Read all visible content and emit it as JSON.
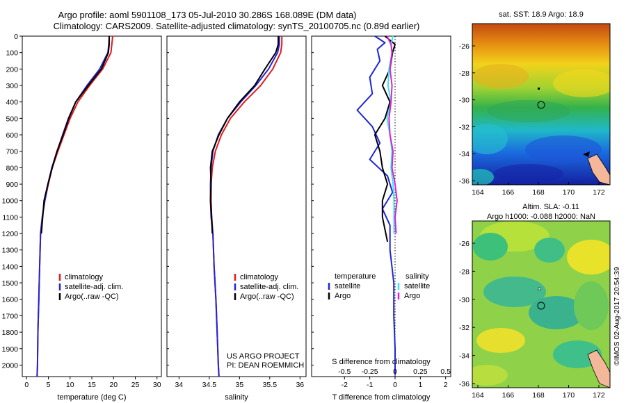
{
  "title_line1": "Argo profile: aoml 5901108_173 05-Jul-2010 30.286S 168.089E (DM data)",
  "title_line2": "Climatology: CARS2009. Satellite-adjusted climatology: synTS_20100705.nc (0.89d earlier)",
  "side_stamp": "©IMOS 02-Aug-2017 20:54:39",
  "colors": {
    "climatology": "#e41a1c",
    "satellite": "#1f24d6",
    "argo": "#000000",
    "sal_satellite": "#33e6f0",
    "sal_argo": "#e020d0"
  },
  "chart_data": [
    {
      "type": "line",
      "panel": "temperature",
      "xlabel": "temperature (deg C)",
      "ylabel": "",
      "xlim": [
        -1,
        31
      ],
      "ylim": [
        2070,
        0
      ],
      "xticks": [
        "0",
        "5",
        "10",
        "15",
        "20",
        "25",
        "30"
      ],
      "yticks": [
        "0",
        "100",
        "200",
        "300",
        "400",
        "500",
        "600",
        "700",
        "800",
        "900",
        "1000",
        "1100",
        "1200",
        "1300",
        "1400",
        "1500",
        "1600",
        "1700",
        "1800",
        "1900",
        "2000"
      ],
      "legend": [
        "climatology",
        "satellite-adj. clim.",
        "Argo(..raw -QC)"
      ],
      "series": [
        {
          "name": "climatology",
          "x": [
            19.8,
            19.6,
            19.4,
            17.5,
            14.5,
            11.8,
            10.0,
            8.6,
            7.2,
            5.9,
            5.0,
            4.2,
            3.6,
            3.2,
            3.0,
            2.8,
            2.6,
            2.5,
            2.4
          ],
          "y": [
            0,
            50,
            100,
            200,
            300,
            400,
            500,
            600,
            700,
            800,
            900,
            1000,
            1100,
            1200,
            1400,
            1600,
            1800,
            2000,
            2070
          ]
        },
        {
          "name": "satellite-adj. clim.",
          "x": [
            19.0,
            18.9,
            18.7,
            16.8,
            13.9,
            11.3,
            9.6,
            8.3,
            7.0,
            5.8,
            4.9,
            4.2,
            3.6,
            3.2,
            3.0,
            2.8,
            2.6,
            2.5,
            2.4
          ],
          "y": [
            0,
            50,
            100,
            200,
            300,
            400,
            500,
            600,
            700,
            800,
            900,
            1000,
            1100,
            1200,
            1400,
            1600,
            1800,
            2000,
            2070
          ]
        },
        {
          "name": "Argo(..raw -QC)",
          "x": [
            19.0,
            19.0,
            18.8,
            17.2,
            14.2,
            11.3,
            9.7,
            8.4,
            7.0,
            5.9,
            4.9,
            4.0,
            3.7,
            3.4
          ],
          "y": [
            0,
            50,
            100,
            200,
            300,
            400,
            500,
            600,
            700,
            800,
            900,
            1000,
            1100,
            1200
          ]
        }
      ],
      "footer": []
    },
    {
      "type": "line",
      "panel": "salinity",
      "xlabel": "salinity",
      "ylabel": "",
      "xlim": [
        33.8,
        36.1
      ],
      "ylim": [
        2070,
        0
      ],
      "xticks": [
        "34",
        "34.5",
        "35",
        "35.5",
        "36"
      ],
      "legend": [
        "climatology",
        "satellite-adj. clim.",
        "Argo(..raw -QC)"
      ],
      "series": [
        {
          "name": "climatology",
          "x": [
            35.7,
            35.7,
            35.68,
            35.55,
            35.35,
            35.08,
            34.85,
            34.7,
            34.6,
            34.55,
            34.53,
            34.53,
            34.54,
            34.56,
            34.58,
            34.61,
            34.63,
            34.65,
            34.66
          ],
          "y": [
            0,
            50,
            100,
            200,
            300,
            400,
            500,
            600,
            700,
            800,
            900,
            1000,
            1100,
            1200,
            1400,
            1600,
            1800,
            2000,
            2070
          ]
        },
        {
          "name": "satellite-adj. clim.",
          "x": [
            35.66,
            35.66,
            35.63,
            35.48,
            35.27,
            35.02,
            34.8,
            34.65,
            34.56,
            34.53,
            34.52,
            34.52,
            34.53,
            34.56,
            34.58,
            34.61,
            34.63,
            34.65,
            34.66
          ],
          "y": [
            0,
            50,
            100,
            200,
            300,
            400,
            500,
            600,
            700,
            800,
            900,
            1000,
            1100,
            1200,
            1400,
            1600,
            1800,
            2000,
            2070
          ]
        },
        {
          "name": "Argo(..raw -QC)",
          "x": [
            35.64,
            35.64,
            35.6,
            35.42,
            35.25,
            35.0,
            34.8,
            34.66,
            34.55,
            34.52,
            34.53,
            34.52,
            34.54,
            34.55
          ],
          "y": [
            0,
            50,
            100,
            200,
            300,
            400,
            500,
            600,
            700,
            800,
            900,
            1000,
            1100,
            1200
          ]
        }
      ],
      "footer": [
        "US ARGO PROJECT",
        "PI: DEAN ROEMMICH"
      ]
    },
    {
      "type": "line",
      "panel": "differences",
      "xlabel": "T difference from climatology",
      "xlabel_top": "S difference from climatology",
      "ylabel": "",
      "xlim": [
        -3.3,
        2.2
      ],
      "ylim": [
        2070,
        0
      ],
      "xticks": [
        "-2",
        "-1",
        "0",
        "1",
        "2"
      ],
      "xticks_top": [
        "-0.5",
        "-0.25",
        "0",
        "0.25",
        "0.5"
      ],
      "legend": {
        "temperature": [
          "satellite",
          "Argo"
        ],
        "salinity": [
          "satellite",
          "Argo"
        ]
      },
      "legend_heads": [
        "temperature",
        "salinity"
      ],
      "series": [
        {
          "name": "temperature satellite",
          "x": [
            -0.8,
            -0.4,
            -0.7,
            -0.6,
            -1.0,
            -0.9,
            -1.5,
            -0.9,
            -0.6,
            -1.0,
            -0.3,
            -0.1,
            -0.5,
            -0.2,
            -0.2,
            -0.05,
            -0.05,
            0.0,
            0.0
          ],
          "y": [
            0,
            40,
            80,
            150,
            250,
            350,
            450,
            550,
            650,
            750,
            850,
            950,
            1050,
            1150,
            1300,
            1500,
            1700,
            1900,
            2060
          ]
        },
        {
          "name": "temperature Argo",
          "x": [
            -0.4,
            0.0,
            -0.1,
            -0.2,
            -0.5,
            -0.2,
            -0.4,
            -0.8,
            -0.6,
            -0.5,
            -0.3,
            -0.5,
            -0.5,
            -0.3
          ],
          "y": [
            0,
            50,
            100,
            200,
            300,
            400,
            500,
            600,
            700,
            800,
            900,
            1000,
            1100,
            1250
          ]
        },
        {
          "name": "salinity satellite",
          "x": [
            -0.02,
            -0.04,
            -0.03,
            -0.06,
            -0.07,
            -0.04,
            -0.08,
            -0.05,
            -0.03,
            -0.04,
            -0.02,
            -0.01,
            -0.01,
            -0.01
          ],
          "y": [
            0,
            50,
            100,
            200,
            300,
            400,
            500,
            600,
            700,
            800,
            900,
            1000,
            1100,
            1200
          ]
        },
        {
          "name": "salinity Argo",
          "x": [
            -0.08,
            -0.04,
            -0.03,
            -0.05,
            -0.03,
            -0.04,
            -0.06,
            -0.05,
            -0.02,
            -0.03,
            0.0,
            0.02,
            0.0,
            0.01
          ],
          "y": [
            0,
            50,
            100,
            200,
            300,
            400,
            500,
            600,
            700,
            800,
            900,
            1000,
            1100,
            1200
          ]
        }
      ],
      "footer": []
    }
  ],
  "maps": [
    {
      "title_lines": [
        "sat. SST: 18.9  Argo: 18.9"
      ],
      "xticks": [
        "164",
        "166",
        "168",
        "170",
        "172"
      ],
      "yticks": [
        "-26",
        "-28",
        "-30",
        "-32",
        "-34",
        "-36"
      ]
    },
    {
      "title_lines": [
        "Altim. SLA: -0.11",
        "Argo h1000: -0.088 h2000: NaN"
      ],
      "xticks": [
        "164",
        "166",
        "168",
        "170",
        "172"
      ],
      "yticks": [
        "-26",
        "-28",
        "-30",
        "-32",
        "-34",
        "-36"
      ]
    }
  ]
}
